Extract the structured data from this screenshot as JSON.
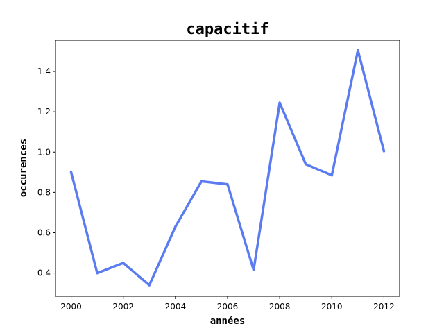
{
  "chart_data": {
    "type": "line",
    "title": "capacitif",
    "xlabel": "années",
    "ylabel": "occurences",
    "x": [
      2000,
      2001,
      2002,
      2003,
      2004,
      2005,
      2006,
      2007,
      2008,
      2009,
      2010,
      2011,
      2012
    ],
    "series": [
      {
        "values": [
          0.9,
          0.4,
          0.45,
          0.34,
          0.63,
          0.855,
          0.84,
          0.415,
          1.245,
          0.94,
          0.885,
          1.505,
          1.005
        ],
        "color": "#5b7cf0"
      }
    ],
    "xlim": [
      1999.4,
      2012.6
    ],
    "ylim": [
      0.285,
      1.555
    ],
    "xticks": [
      2000,
      2002,
      2004,
      2006,
      2008,
      2010,
      2012
    ],
    "yticks": [
      0.4,
      0.6,
      0.8,
      1.0,
      1.2,
      1.4
    ],
    "xtick_labels": [
      "2000",
      "2002",
      "2004",
      "2006",
      "2008",
      "2010",
      "2012"
    ],
    "ytick_labels": [
      "0.4",
      "0.6",
      "0.8",
      "1.0",
      "1.2",
      "1.4"
    ],
    "grid": false,
    "legend": "none"
  }
}
